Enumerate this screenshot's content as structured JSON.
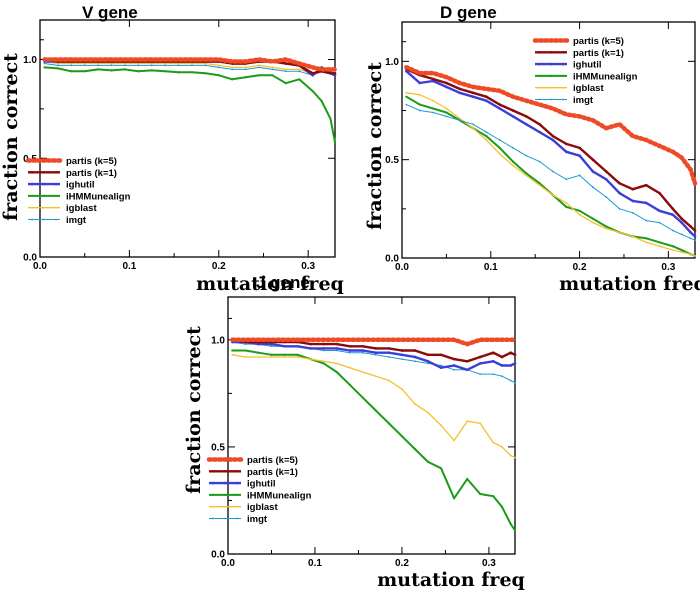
{
  "chart_data": [
    {
      "type": "line",
      "title": "V gene",
      "xlabel": "mutation freq",
      "ylabel": "fraction correct",
      "xlim": [
        0,
        0.33
      ],
      "ylim": [
        0,
        1.2
      ],
      "xticks": [
        "0.0",
        "0.1",
        "0.2",
        "0.3"
      ],
      "yticks": [
        "0.0",
        "0.5",
        "1.0"
      ],
      "legend_position": "lower-left",
      "x": [
        0.005,
        0.02,
        0.035,
        0.05,
        0.065,
        0.08,
        0.095,
        0.11,
        0.125,
        0.14,
        0.155,
        0.17,
        0.185,
        0.2,
        0.215,
        0.23,
        0.245,
        0.26,
        0.275,
        0.29,
        0.305,
        0.315,
        0.325,
        0.33
      ],
      "series": [
        {
          "name": "partis (k=5)",
          "color": "#ee4a25",
          "width": 4.5,
          "dash": "2,3",
          "values": [
            1.0,
            1.0,
            1.0,
            1.0,
            1.0,
            1.0,
            1.0,
            1.0,
            1.0,
            1.0,
            1.0,
            1.0,
            1.0,
            1.0,
            0.99,
            0.99,
            1.0,
            0.99,
            1.0,
            0.98,
            0.96,
            0.95,
            0.95,
            0.95
          ]
        },
        {
          "name": "partis (k=1)",
          "color": "#8b0a0a",
          "width": 2.4,
          "dash": "",
          "values": [
            1.0,
            0.99,
            0.99,
            0.99,
            0.99,
            0.99,
            0.99,
            0.99,
            0.99,
            0.99,
            0.99,
            0.99,
            0.99,
            0.99,
            0.98,
            0.98,
            0.99,
            0.99,
            0.98,
            0.97,
            0.93,
            0.94,
            0.93,
            0.93
          ]
        },
        {
          "name": "ighutil",
          "color": "#3b3fd8",
          "width": 2.4,
          "dash": "",
          "values": [
            0.99,
            0.99,
            0.99,
            0.99,
            0.99,
            0.99,
            0.99,
            0.99,
            0.99,
            0.99,
            0.99,
            0.99,
            0.99,
            0.99,
            0.98,
            0.98,
            0.99,
            0.99,
            0.98,
            0.97,
            0.92,
            0.96,
            0.93,
            0.92
          ]
        },
        {
          "name": "iHMMunealign",
          "color": "#1a9c1a",
          "width": 2.0,
          "dash": "",
          "values": [
            0.96,
            0.955,
            0.94,
            0.94,
            0.95,
            0.945,
            0.95,
            0.94,
            0.945,
            0.94,
            0.935,
            0.935,
            0.93,
            0.92,
            0.9,
            0.91,
            0.92,
            0.92,
            0.88,
            0.9,
            0.84,
            0.79,
            0.7,
            0.58
          ]
        },
        {
          "name": "igblast",
          "color": "#f2c22e",
          "width": 1.3,
          "dash": "",
          "values": [
            0.99,
            0.98,
            0.98,
            0.98,
            0.98,
            0.98,
            0.98,
            0.98,
            0.98,
            0.98,
            0.98,
            0.98,
            0.98,
            0.97,
            0.96,
            0.96,
            0.97,
            0.96,
            0.95,
            0.95,
            0.93,
            0.94,
            0.95,
            0.94
          ]
        },
        {
          "name": "imgt",
          "color": "#1e9ad1",
          "width": 1.0,
          "dash": "",
          "values": [
            0.98,
            0.97,
            0.97,
            0.97,
            0.97,
            0.97,
            0.97,
            0.97,
            0.97,
            0.97,
            0.97,
            0.97,
            0.97,
            0.96,
            0.95,
            0.95,
            0.96,
            0.95,
            0.94,
            0.94,
            0.92,
            0.94,
            0.94,
            0.93
          ]
        }
      ]
    },
    {
      "type": "line",
      "title": "D gene",
      "xlabel": "mutation freq",
      "ylabel": "fraction correct",
      "xlim": [
        0,
        0.33
      ],
      "ylim": [
        0,
        1.2
      ],
      "xticks": [
        "0.0",
        "0.1",
        "0.2",
        "0.3"
      ],
      "yticks": [
        "0.0",
        "0.5",
        "1.0"
      ],
      "legend_position": "top-right",
      "x": [
        0.005,
        0.02,
        0.035,
        0.05,
        0.065,
        0.08,
        0.095,
        0.11,
        0.125,
        0.14,
        0.155,
        0.17,
        0.185,
        0.2,
        0.215,
        0.23,
        0.245,
        0.26,
        0.275,
        0.29,
        0.305,
        0.315,
        0.325,
        0.33
      ],
      "series": [
        {
          "name": "partis (k=5)",
          "color": "#ee4a25",
          "width": 4.5,
          "dash": "2,3",
          "values": [
            0.97,
            0.94,
            0.94,
            0.92,
            0.89,
            0.87,
            0.86,
            0.85,
            0.82,
            0.8,
            0.78,
            0.76,
            0.73,
            0.72,
            0.7,
            0.66,
            0.68,
            0.62,
            0.6,
            0.57,
            0.54,
            0.51,
            0.45,
            0.38
          ]
        },
        {
          "name": "partis (k=1)",
          "color": "#8b0a0a",
          "width": 2.4,
          "dash": "",
          "values": [
            0.96,
            0.93,
            0.91,
            0.89,
            0.86,
            0.84,
            0.82,
            0.78,
            0.75,
            0.72,
            0.68,
            0.62,
            0.58,
            0.56,
            0.5,
            0.44,
            0.38,
            0.35,
            0.37,
            0.33,
            0.25,
            0.2,
            0.16,
            0.14
          ]
        },
        {
          "name": "ighutil",
          "color": "#3b3fd8",
          "width": 2.4,
          "dash": "",
          "values": [
            0.95,
            0.89,
            0.9,
            0.87,
            0.84,
            0.82,
            0.8,
            0.76,
            0.72,
            0.68,
            0.64,
            0.6,
            0.54,
            0.52,
            0.44,
            0.4,
            0.33,
            0.29,
            0.28,
            0.24,
            0.22,
            0.18,
            0.13,
            0.11
          ]
        },
        {
          "name": "iHMMunealign",
          "color": "#1a9c1a",
          "width": 2.0,
          "dash": "",
          "values": [
            0.82,
            0.78,
            0.76,
            0.74,
            0.7,
            0.66,
            0.62,
            0.56,
            0.49,
            0.43,
            0.38,
            0.32,
            0.26,
            0.24,
            0.2,
            0.16,
            0.13,
            0.11,
            0.1,
            0.08,
            0.06,
            0.04,
            0.02,
            0.01
          ]
        },
        {
          "name": "igblast",
          "color": "#f2c22e",
          "width": 1.3,
          "dash": "",
          "values": [
            0.84,
            0.83,
            0.8,
            0.76,
            0.71,
            0.66,
            0.6,
            0.53,
            0.47,
            0.42,
            0.37,
            0.32,
            0.28,
            0.22,
            0.18,
            0.15,
            0.13,
            0.11,
            0.08,
            0.06,
            0.04,
            0.03,
            0.02,
            0.01
          ]
        },
        {
          "name": "imgt",
          "color": "#1e9ad1",
          "width": 1.0,
          "dash": "",
          "values": [
            0.78,
            0.75,
            0.74,
            0.72,
            0.7,
            0.68,
            0.64,
            0.6,
            0.56,
            0.52,
            0.49,
            0.44,
            0.4,
            0.42,
            0.36,
            0.31,
            0.25,
            0.23,
            0.19,
            0.18,
            0.14,
            0.12,
            0.1,
            0.09
          ]
        }
      ]
    },
    {
      "type": "line",
      "title": "J gene",
      "xlabel": "mutation freq",
      "ylabel": "fraction correct",
      "xlim": [
        0,
        0.33
      ],
      "ylim": [
        0,
        1.2
      ],
      "xticks": [
        "0.0",
        "0.1",
        "0.2",
        "0.3"
      ],
      "yticks": [
        "0.0",
        "0.5",
        "1.0"
      ],
      "legend_position": "lower-left",
      "x": [
        0.005,
        0.02,
        0.035,
        0.05,
        0.065,
        0.08,
        0.095,
        0.11,
        0.125,
        0.14,
        0.155,
        0.17,
        0.185,
        0.2,
        0.215,
        0.23,
        0.245,
        0.26,
        0.275,
        0.29,
        0.305,
        0.315,
        0.325,
        0.33
      ],
      "series": [
        {
          "name": "partis (k=5)",
          "color": "#ee4a25",
          "width": 4.5,
          "dash": "2,3",
          "values": [
            1.0,
            1.0,
            1.0,
            1.0,
            1.0,
            1.0,
            1.0,
            1.0,
            1.0,
            1.0,
            1.0,
            1.0,
            1.0,
            1.0,
            1.0,
            1.0,
            1.0,
            1.0,
            0.98,
            1.0,
            1.0,
            1.0,
            1.0,
            1.0
          ]
        },
        {
          "name": "partis (k=1)",
          "color": "#8b0a0a",
          "width": 2.4,
          "dash": "",
          "values": [
            1.0,
            0.99,
            0.99,
            0.99,
            0.99,
            0.99,
            0.98,
            0.98,
            0.98,
            0.97,
            0.97,
            0.96,
            0.96,
            0.95,
            0.95,
            0.93,
            0.93,
            0.91,
            0.9,
            0.92,
            0.94,
            0.92,
            0.94,
            0.93
          ]
        },
        {
          "name": "ighutil",
          "color": "#3b3fd8",
          "width": 2.4,
          "dash": "",
          "values": [
            0.99,
            0.99,
            0.98,
            0.98,
            0.97,
            0.97,
            0.96,
            0.96,
            0.96,
            0.95,
            0.95,
            0.94,
            0.94,
            0.93,
            0.92,
            0.9,
            0.87,
            0.88,
            0.86,
            0.89,
            0.9,
            0.88,
            0.88,
            0.89
          ]
        },
        {
          "name": "iHMMunealign",
          "color": "#1a9c1a",
          "width": 2.0,
          "dash": "",
          "values": [
            0.95,
            0.95,
            0.94,
            0.93,
            0.93,
            0.93,
            0.91,
            0.89,
            0.85,
            0.79,
            0.73,
            0.67,
            0.61,
            0.55,
            0.49,
            0.43,
            0.4,
            0.26,
            0.35,
            0.28,
            0.27,
            0.22,
            0.14,
            0.11
          ]
        },
        {
          "name": "igblast",
          "color": "#f2c22e",
          "width": 1.3,
          "dash": "",
          "values": [
            0.93,
            0.92,
            0.92,
            0.92,
            0.92,
            0.92,
            0.91,
            0.9,
            0.89,
            0.87,
            0.85,
            0.83,
            0.81,
            0.77,
            0.7,
            0.66,
            0.6,
            0.53,
            0.62,
            0.61,
            0.52,
            0.5,
            0.46,
            0.45
          ]
        },
        {
          "name": "imgt",
          "color": "#1e9ad1",
          "width": 1.0,
          "dash": "",
          "values": [
            0.99,
            0.98,
            0.98,
            0.97,
            0.97,
            0.97,
            0.96,
            0.95,
            0.95,
            0.94,
            0.94,
            0.93,
            0.92,
            0.91,
            0.9,
            0.89,
            0.88,
            0.86,
            0.86,
            0.84,
            0.84,
            0.83,
            0.81,
            0.8
          ]
        }
      ]
    }
  ]
}
